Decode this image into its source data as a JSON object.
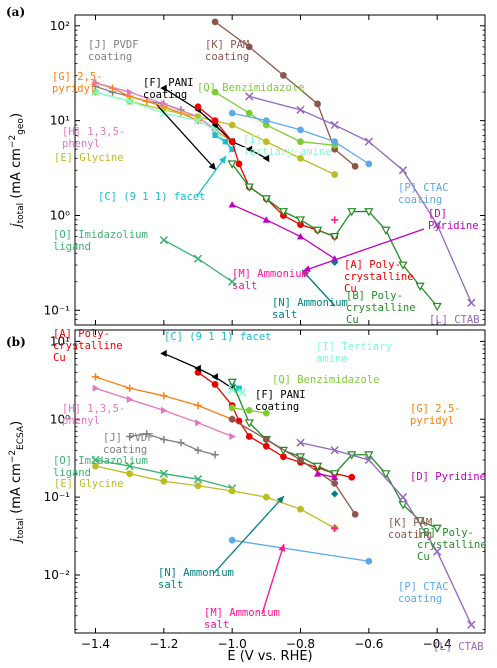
{
  "figure": {
    "xlabel": "E (V vs. RHE)",
    "xticks": [
      -1.4,
      -1.2,
      -1.0,
      -0.8,
      -0.6,
      -0.4
    ],
    "xlim": [
      -1.46,
      -0.26
    ]
  },
  "chart_data": [
    {
      "type": "line",
      "panel": "(a)",
      "ylabel_main": "j",
      "ylabel_sub": "total",
      "ylabel_rest": " (mA cm",
      "ylabel_exp": "−2",
      "ylabel_sub2": "geo",
      "ylabel_end": ")",
      "ylog": true,
      "ylim": [
        0.07,
        130
      ],
      "yticks": [
        {
          "v": 0.1,
          "label": "10⁻¹"
        },
        {
          "v": 1,
          "label": "10⁰"
        },
        {
          "v": 10,
          "label": "10¹"
        },
        {
          "v": 100,
          "label": "10²"
        }
      ],
      "grid": false,
      "series": [
        {
          "key": "K",
          "name": "[K] PAM coating",
          "color": "#8c564b",
          "marker": "o",
          "x": [
            -1.05,
            -0.95,
            -0.85,
            -0.75,
            -0.7,
            -0.64
          ],
          "y": [
            110,
            60,
            30,
            15,
            5,
            3.3
          ]
        },
        {
          "key": "J",
          "name": "[J] PVDF coating",
          "color": "#7f7f7f",
          "marker": "+",
          "x": [
            -1.4,
            -1.35,
            -1.3,
            -1.25,
            -1.2,
            -1.15
          ],
          "y": [
            23,
            20,
            18,
            16,
            15,
            13
          ]
        },
        {
          "key": "G",
          "name": "[G] 2,5-pyridyl",
          "color": "#ff7f0e",
          "marker": "+",
          "x": [
            -1.4,
            -1.35,
            -1.3,
            -1.25,
            -1.2,
            -1.15,
            -1.1,
            -1.05,
            -1.0
          ],
          "y": [
            25,
            22,
            18,
            16,
            14,
            12,
            10,
            8,
            6
          ]
        },
        {
          "key": "H",
          "name": "[H] 1,3,5-phenyl",
          "color": "#e377c2",
          "marker": ">",
          "x": [
            -1.4,
            -1.3,
            -1.2,
            -1.1,
            -1.05,
            -1.0
          ],
          "y": [
            25,
            20,
            15,
            11,
            8,
            5
          ]
        },
        {
          "key": "E",
          "name": "[E] Glycine",
          "color": "#bcbd22",
          "marker": "o",
          "x": [
            -1.4,
            -1.3,
            -1.2,
            -1.1,
            -1.0,
            -0.9,
            -0.8,
            -0.7
          ],
          "y": [
            20,
            16,
            13,
            11,
            9,
            6,
            4,
            2.7
          ]
        },
        {
          "key": "I",
          "name": "[I] Tertiary amine",
          "color": "#7fffd4",
          "marker": "x",
          "x": [
            -1.4,
            -1.3,
            -1.2,
            -1.1,
            -1.05,
            -1.0
          ],
          "y": [
            20,
            16,
            12,
            10,
            8,
            5
          ]
        },
        {
          "key": "F",
          "name": "[F] PANI coating",
          "color": "#000000",
          "marker": "<",
          "x": [
            -1.2,
            -1.1,
            -1.05,
            -1.0,
            -0.95,
            -0.9
          ],
          "y": [
            22,
            13,
            9,
            6,
            5,
            4
          ]
        },
        {
          "key": "Q",
          "name": "[Q] Benzimidazole",
          "color": "#7ccd32",
          "marker": "o",
          "x": [
            -1.05,
            -0.95,
            -0.9,
            -0.8,
            -0.7
          ],
          "y": [
            20,
            12,
            9,
            6,
            5.5
          ]
        },
        {
          "key": "C",
          "name": "[C] (9 1 1) facet",
          "color": "#17becf",
          "marker": "s",
          "x": [
            -1.05,
            -1.02,
            -1.0
          ],
          "y": [
            7,
            6,
            5
          ]
        },
        {
          "key": "P",
          "name": "[P] CTAC coating",
          "color": "#5ea9e8",
          "marker": "o",
          "x": [
            -1.0,
            -0.9,
            -0.8,
            -0.7,
            -0.6
          ],
          "y": [
            12,
            10,
            8,
            6,
            3.5
          ]
        },
        {
          "key": "L",
          "name": "[L] CTAB",
          "color": "#9467bd",
          "marker": "x",
          "x": [
            -0.95,
            -0.8,
            -0.7,
            -0.6,
            -0.5,
            -0.4,
            -0.3
          ],
          "y": [
            18,
            13,
            9,
            6,
            3,
            0.8,
            0.12
          ]
        },
        {
          "key": "A",
          "name": "[A] Poly-crystalline Cu",
          "color": "#ee0000",
          "marker": "o",
          "x": [
            -1.1,
            -1.05,
            -1.0,
            -0.98,
            -0.95,
            -0.9,
            -0.85,
            -0.8,
            -0.75,
            -0.7
          ],
          "y": [
            14,
            10,
            6,
            3.5,
            2,
            1.5,
            1,
            0.8,
            0.7,
            0.6
          ]
        },
        {
          "key": "B",
          "name": "[B] Poly-crystalline Cu",
          "color": "#228b22",
          "marker": "v",
          "x": [
            -1.0,
            -0.95,
            -0.9,
            -0.85,
            -0.8,
            -0.75,
            -0.7,
            -0.65,
            -0.6,
            -0.55,
            -0.5,
            -0.45,
            -0.4
          ],
          "y": [
            3.5,
            2,
            1.5,
            1.1,
            0.9,
            0.7,
            0.6,
            1.1,
            1.1,
            0.7,
            0.3,
            0.18,
            0.11
          ]
        },
        {
          "key": "D",
          "name": "[D] Pyridine",
          "color": "#c000c0",
          "marker": "^",
          "x": [
            -1.0,
            -0.9,
            -0.8,
            -0.7
          ],
          "y": [
            1.3,
            0.9,
            0.6,
            0.35
          ]
        },
        {
          "key": "M",
          "name": "[M] Ammonium salt",
          "color": "#ff1493",
          "marker": "+",
          "x": [
            -0.7
          ],
          "y": [
            0.9
          ]
        },
        {
          "key": "N",
          "name": "[N] Ammonium salt",
          "color": "#008080",
          "marker": "D",
          "x": [
            -0.7
          ],
          "y": [
            0.32
          ]
        },
        {
          "key": "O",
          "name": "[O] Imidazolium ligand",
          "color": "#3cb371",
          "marker": "x",
          "x": [
            -1.2,
            -1.1,
            -1.0
          ],
          "y": [
            0.55,
            0.35,
            0.2
          ]
        }
      ],
      "labels": [
        {
          "text": [
            "[K] PAM",
            "coating"
          ],
          "color": "#8c564b"
        },
        {
          "text": [
            "[J] PVDF",
            "coating"
          ],
          "color": "#7f7f7f"
        },
        {
          "text": [
            "[G] 2,5-",
            "pyridyl"
          ],
          "color": "#ff7f0e"
        },
        {
          "text": [
            "[F] PANI",
            "coating"
          ],
          "color": "#000000"
        },
        {
          "text": [
            "[Q] Benzimidazole"
          ],
          "color": "#7ccd32"
        },
        {
          "text": [
            "[H] 1,3,5-",
            "phenyl"
          ],
          "color": "#e377c2"
        },
        {
          "text": [
            "[I]",
            "Tertiary amine"
          ],
          "color": "#7fffd4"
        },
        {
          "text": [
            "[E] Glycine"
          ],
          "color": "#bcbd22"
        },
        {
          "text": [
            "[C] (9 1 1) facet"
          ],
          "color": "#17becf"
        },
        {
          "text": [
            "[P] CTAC",
            "coating"
          ],
          "color": "#5ea9e8"
        },
        {
          "text": [
            "[D]",
            "Pyridine"
          ],
          "color": "#c000c0"
        },
        {
          "text": [
            "[O] Imidazolium",
            "ligand"
          ],
          "color": "#3cb371"
        },
        {
          "text": [
            "[A] Poly-",
            "crystalline",
            "Cu"
          ],
          "color": "#ee0000"
        },
        {
          "text": [
            "[M] Ammonium",
            "salt"
          ],
          "color": "#ff1493"
        },
        {
          "text": [
            "[B] Poly-",
            "crystalline",
            "Cu"
          ],
          "color": "#228b22"
        },
        {
          "text": [
            "[N] Ammonium",
            "salt"
          ],
          "color": "#008080"
        },
        {
          "text": [
            "[L] CTAB"
          ],
          "color": "#9467bd"
        }
      ]
    },
    {
      "type": "line",
      "panel": "(b)",
      "ylabel_main": "j",
      "ylabel_sub": "total",
      "ylabel_rest": " (mA cm",
      "ylabel_exp": "−2",
      "ylabel_sub2": "ECSA",
      "ylabel_end": ")",
      "ylog": true,
      "ylim": [
        0.0018,
        14
      ],
      "yticks": [
        {
          "v": 0.01,
          "label": "10⁻²"
        },
        {
          "v": 0.1,
          "label": "10⁻¹"
        },
        {
          "v": 1,
          "label": "10⁰"
        },
        {
          "v": 10,
          "label": "10¹"
        }
      ],
      "grid": false,
      "series": [
        {
          "key": "A",
          "name": "[A] Poly-crystalline Cu",
          "color": "#ee0000",
          "marker": "o",
          "x": [
            -1.1,
            -1.05,
            -1.0,
            -0.98,
            -0.95,
            -0.9,
            -0.85,
            -0.8,
            -0.75,
            -0.7,
            -0.65
          ],
          "y": [
            4.0,
            2.8,
            1.5,
            0.95,
            0.6,
            0.45,
            0.33,
            0.28,
            0.24,
            0.2,
            0.18
          ]
        },
        {
          "key": "F",
          "name": "[F] PANI coating",
          "color": "#000000",
          "marker": "<",
          "x": [
            -1.2,
            -1.1,
            -1.05,
            -1.0
          ],
          "y": [
            7.0,
            4.5,
            3.5,
            2.5
          ]
        },
        {
          "key": "C",
          "name": "[C] (9 1 1) facet",
          "color": "#17becf",
          "marker": "s",
          "x": [
            -1.0,
            -0.98
          ],
          "y": [
            3.0,
            2.5
          ]
        },
        {
          "key": "I",
          "name": "[I] Tertiary amine",
          "color": "#7fffd4",
          "marker": "x",
          "x": [
            -1.0,
            -0.97
          ],
          "y": [
            2.4,
            2.2
          ]
        },
        {
          "key": "B",
          "name": "[B] Poly-crystalline Cu",
          "color": "#228b22",
          "marker": "v",
          "x": [
            -1.0,
            -0.95,
            -0.9,
            -0.85,
            -0.8,
            -0.75,
            -0.7,
            -0.65,
            -0.6,
            -0.55,
            -0.5,
            -0.45,
            -0.4
          ],
          "y": [
            3.0,
            0.9,
            0.55,
            0.4,
            0.33,
            0.25,
            0.2,
            0.35,
            0.35,
            0.2,
            0.08,
            0.05,
            0.04
          ]
        },
        {
          "key": "Q",
          "name": "[Q] Benzimidazole",
          "color": "#7ccd32",
          "marker": "o",
          "x": [
            -1.0,
            -0.95,
            -0.9
          ],
          "y": [
            1.4,
            1.3,
            1.2
          ]
        },
        {
          "key": "G",
          "name": "[G] 2,5-pyridyl",
          "color": "#ff7f0e",
          "marker": "+",
          "x": [
            -1.4,
            -1.3,
            -1.2,
            -1.1,
            -1.0
          ],
          "y": [
            3.5,
            2.5,
            2.0,
            1.5,
            1.0
          ]
        },
        {
          "key": "H",
          "name": "[H] 1,3,5-phenyl",
          "color": "#e377c2",
          "marker": ">",
          "x": [
            -1.4,
            -1.3,
            -1.2,
            -1.1,
            -1.0
          ],
          "y": [
            2.5,
            1.8,
            1.3,
            0.9,
            0.6
          ]
        },
        {
          "key": "J",
          "name": "[J] PVDF coating",
          "color": "#7f7f7f",
          "marker": "+",
          "x": [
            -1.3,
            -1.25,
            -1.2,
            -1.15,
            -1.1,
            -1.05
          ],
          "y": [
            0.6,
            0.65,
            0.55,
            0.5,
            0.4,
            0.35
          ]
        },
        {
          "key": "O",
          "name": "[O] Imidazolium ligand",
          "color": "#3cb371",
          "marker": "x",
          "x": [
            -1.4,
            -1.3,
            -1.2,
            -1.1,
            -1.0
          ],
          "y": [
            0.3,
            0.25,
            0.2,
            0.17,
            0.13
          ]
        },
        {
          "key": "E",
          "name": "[E] Glycine",
          "color": "#bcbd22",
          "marker": "o",
          "x": [
            -1.4,
            -1.3,
            -1.2,
            -1.1,
            -1.0,
            -0.9,
            -0.8,
            -0.7
          ],
          "y": [
            0.25,
            0.2,
            0.16,
            0.14,
            0.12,
            0.1,
            0.07,
            0.04
          ]
        },
        {
          "key": "K",
          "name": "[K] PAM coating",
          "color": "#8c564b",
          "marker": "o",
          "x": [
            -1.0,
            -0.9,
            -0.8,
            -0.7,
            -0.64
          ],
          "y": [
            1.0,
            0.55,
            0.3,
            0.15,
            0.06
          ]
        },
        {
          "key": "L",
          "name": "[L] CTAB",
          "color": "#9467bd",
          "marker": "x",
          "x": [
            -0.8,
            -0.7,
            -0.6,
            -0.5,
            -0.4,
            -0.3
          ],
          "y": [
            0.5,
            0.4,
            0.3,
            0.1,
            0.02,
            0.0023
          ]
        },
        {
          "key": "D",
          "name": "[D] Pyridine",
          "color": "#c000c0",
          "marker": "^",
          "x": [
            -0.75,
            -0.7
          ],
          "y": [
            0.2,
            0.18
          ]
        },
        {
          "key": "N",
          "name": "[N] Ammonium salt",
          "color": "#008080",
          "marker": "D",
          "x": [
            -0.7
          ],
          "y": [
            0.11
          ]
        },
        {
          "key": "M",
          "name": "[M] Ammonium salt",
          "color": "#ff1493",
          "marker": "+",
          "x": [
            -0.7
          ],
          "y": [
            0.04
          ]
        },
        {
          "key": "P",
          "name": "[P] CTAC coating",
          "color": "#5ea9e8",
          "marker": "o",
          "x": [
            -1.0,
            -0.6
          ],
          "y": [
            0.028,
            0.015
          ]
        }
      ],
      "labels": [
        {
          "text": [
            "[A] Poly-",
            "crystalline",
            "Cu"
          ],
          "color": "#ee0000"
        },
        {
          "text": [
            "[C] (9 1 1) facet"
          ],
          "color": "#17becf"
        },
        {
          "text": [
            "[I] Tertiary",
            "amine"
          ],
          "color": "#7fffd4"
        },
        {
          "text": [
            "[Q] Benzimidazole"
          ],
          "color": "#7ccd32"
        },
        {
          "text": [
            "[F] PANI",
            "coating"
          ],
          "color": "#000000"
        },
        {
          "text": [
            "[G] 2,5-",
            "pyridyl"
          ],
          "color": "#ff7f0e"
        },
        {
          "text": [
            "[H] 1,3,5-",
            "phenyl"
          ],
          "color": "#e377c2"
        },
        {
          "text": [
            "[J] PVDF",
            "coating"
          ],
          "color": "#7f7f7f"
        },
        {
          "text": [
            "[O] Imidazolium",
            "ligand"
          ],
          "color": "#3cb371"
        },
        {
          "text": [
            "[E] Glycine"
          ],
          "color": "#bcbd22"
        },
        {
          "text": [
            "[D] Pyridine"
          ],
          "color": "#c000c0"
        },
        {
          "text": [
            "[K] PAM",
            "coating"
          ],
          "color": "#8c564b"
        },
        {
          "text": [
            "[B] Poly-",
            "crystalline",
            "Cu"
          ],
          "color": "#228b22"
        },
        {
          "text": [
            "[N] Ammonium",
            "salt"
          ],
          "color": "#008080"
        },
        {
          "text": [
            "[P] CTAC",
            "coating"
          ],
          "color": "#5ea9e8"
        },
        {
          "text": [
            "[M] Ammonium",
            "salt"
          ],
          "color": "#ff1493"
        },
        {
          "text": [
            "[L] CTAB"
          ],
          "color": "#9467bd"
        }
      ]
    }
  ]
}
